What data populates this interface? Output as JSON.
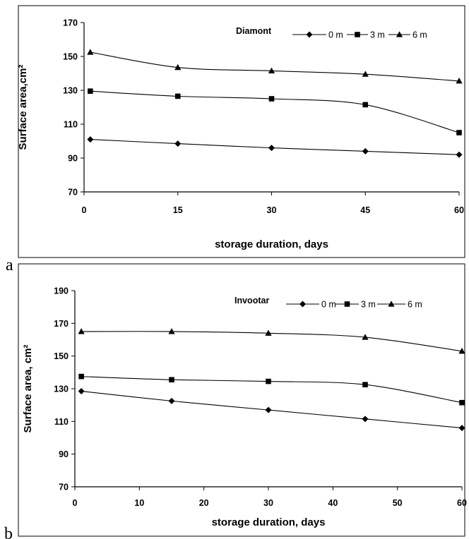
{
  "chart_data": [
    {
      "panel_label": "a",
      "type": "line",
      "legend_title": "Diamont",
      "xlabel": "storage duration, days",
      "ylabel": "Surface area,cm²",
      "xlim": [
        0,
        60
      ],
      "ylim": [
        70,
        170
      ],
      "xticks": [
        0,
        15,
        30,
        45,
        60
      ],
      "yticks": [
        70,
        90,
        110,
        130,
        150,
        170
      ],
      "legend_position": "top-right",
      "series": [
        {
          "name": "0 m",
          "marker": "diamond",
          "x": [
            1,
            15,
            30,
            45,
            60
          ],
          "y": [
            101,
            98.5,
            96,
            94,
            92
          ]
        },
        {
          "name": "3 m",
          "marker": "square",
          "x": [
            1,
            15,
            30,
            45,
            60
          ],
          "y": [
            129.5,
            126.5,
            125,
            121.5,
            105
          ]
        },
        {
          "name": "6 m",
          "marker": "triangle",
          "x": [
            1,
            15,
            30,
            45,
            60
          ],
          "y": [
            152.5,
            143.5,
            141.5,
            139.5,
            135.5
          ]
        }
      ]
    },
    {
      "panel_label": "b",
      "type": "line",
      "legend_title": "Invootar",
      "xlabel": "storage duration, days",
      "ylabel": "Surface area, cm²",
      "xlim": [
        0,
        60
      ],
      "ylim": [
        70,
        190
      ],
      "xticks": [
        0,
        10,
        20,
        30,
        40,
        50,
        60
      ],
      "yticks": [
        70,
        90,
        110,
        130,
        150,
        170,
        190
      ],
      "legend_position": "top-right",
      "series": [
        {
          "name": "0 m",
          "marker": "diamond",
          "x": [
            1,
            15,
            30,
            45,
            60
          ],
          "y": [
            128.5,
            122.5,
            117,
            111.5,
            106
          ]
        },
        {
          "name": "3 m",
          "marker": "square",
          "x": [
            1,
            15,
            30,
            45,
            60
          ],
          "y": [
            137.5,
            135.5,
            134.5,
            132.5,
            121.5
          ]
        },
        {
          "name": "6 m",
          "marker": "triangle",
          "x": [
            1,
            15,
            30,
            45,
            60
          ],
          "y": [
            165,
            165,
            164,
            161.5,
            153
          ]
        }
      ]
    }
  ]
}
